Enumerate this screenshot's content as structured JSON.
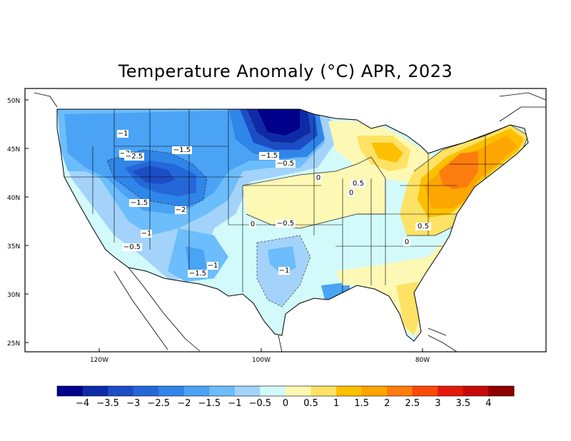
{
  "title": "Temperature Anomaly (°C) APR, 2023",
  "lat_ticks": [
    "50N",
    "45N",
    "40N",
    "35N",
    "30N",
    "25N"
  ],
  "lon_ticks": [
    "120W",
    "100W",
    "80W"
  ],
  "colorbar": {
    "colors": [
      "#00008a",
      "#0f2aa8",
      "#1c4dc4",
      "#2468d8",
      "#3085e8",
      "#4aa3f5",
      "#6cbdfb",
      "#a3d3fa",
      "#d3fafa",
      "#fdf8b4",
      "#fde265",
      "#fdc000",
      "#fda500",
      "#fd7c0e",
      "#fb4a0a",
      "#e41a0a",
      "#c50a0a",
      "#8e0000"
    ],
    "labels": [
      "−4",
      "−3.5",
      "−3",
      "−2.5",
      "−2",
      "−1.5",
      "−1",
      "−0.5",
      "0",
      "0.5",
      "1",
      "1.5",
      "2",
      "2.5",
      "3",
      "3.5",
      "4"
    ]
  },
  "contour_labels": [
    {
      "text": "−1"
    },
    {
      "text": "−2"
    },
    {
      "text": "−2.5"
    },
    {
      "text": "−1.5"
    },
    {
      "text": "−1.5"
    },
    {
      "text": "−0.5"
    },
    {
      "text": "−1.5"
    },
    {
      "text": "−2"
    },
    {
      "text": "−1"
    },
    {
      "text": "−0.5"
    },
    {
      "text": "0"
    },
    {
      "text": "0.5"
    },
    {
      "text": "0"
    },
    {
      "text": "0"
    },
    {
      "text": "−0.5"
    },
    {
      "text": "−1"
    },
    {
      "text": "−1.5"
    },
    {
      "text": "−1"
    },
    {
      "text": "0.5"
    },
    {
      "text": "0"
    }
  ]
}
